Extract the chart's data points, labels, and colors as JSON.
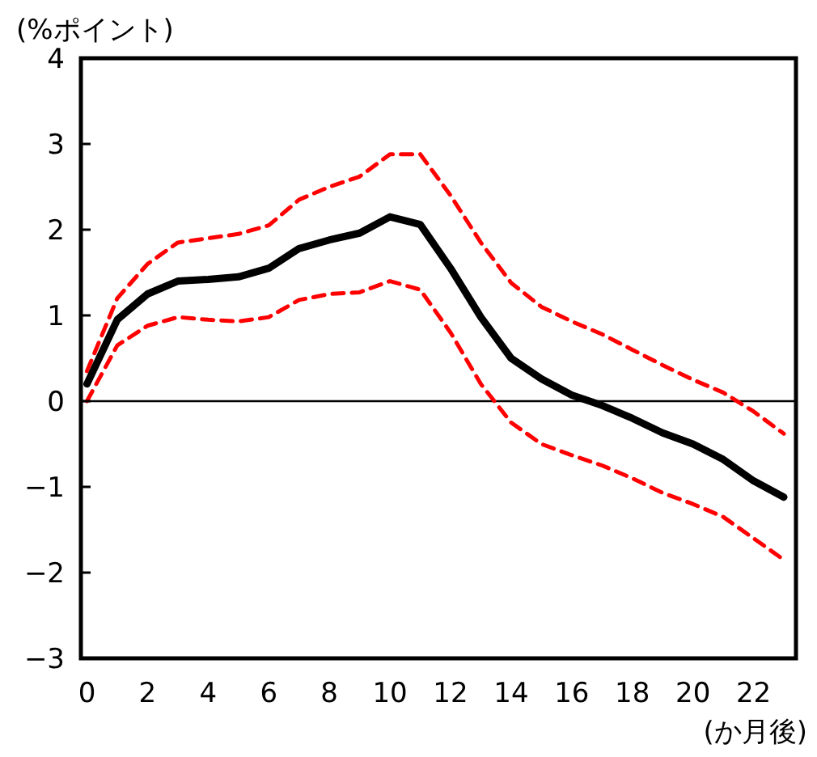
{
  "chart_data": {
    "type": "line",
    "ylabel": "(%ポイント)",
    "xlabel": "(か月後)",
    "x": [
      0,
      1,
      2,
      3,
      4,
      5,
      6,
      7,
      8,
      9,
      10,
      11,
      12,
      13,
      14,
      15,
      16,
      17,
      18,
      19,
      20,
      21,
      22,
      23
    ],
    "xlim": [
      -0.2,
      23.4
    ],
    "xticks": [
      0,
      2,
      4,
      6,
      8,
      10,
      12,
      14,
      16,
      18,
      20,
      22
    ],
    "ylim": [
      -3,
      4
    ],
    "yticks": [
      -3,
      -2,
      -1,
      0,
      1,
      2,
      3,
      4
    ],
    "grid": false,
    "ref_lines": [
      {
        "axis": "y",
        "value": 0,
        "color": "#000000"
      }
    ],
    "series": [
      {
        "color": "#ff0000",
        "line_style": "dashed",
        "values": [
          0.35,
          1.2,
          1.6,
          1.85,
          1.9,
          1.95,
          2.05,
          2.35,
          2.5,
          2.62,
          2.88,
          2.88,
          2.4,
          1.85,
          1.38,
          1.1,
          0.93,
          0.78,
          0.6,
          0.42,
          0.25,
          0.1,
          -0.12,
          -0.38
        ]
      },
      {
        "color": "#ff0000",
        "line_style": "dashed",
        "values": [
          0,
          0.65,
          0.88,
          0.98,
          0.95,
          0.93,
          0.98,
          1.18,
          1.25,
          1.27,
          1.4,
          1.3,
          0.8,
          0.2,
          -0.25,
          -0.5,
          -0.63,
          -0.75,
          -0.9,
          -1.07,
          -1.2,
          -1.35,
          -1.6,
          -1.85
        ]
      },
      {
        "color": "#000000",
        "line_style": "solid",
        "values": [
          0.2,
          0.95,
          1.25,
          1.4,
          1.42,
          1.45,
          1.55,
          1.78,
          1.88,
          1.96,
          2.15,
          2.06,
          1.55,
          0.98,
          0.5,
          0.26,
          0.07,
          -0.05,
          -0.2,
          -0.37,
          -0.5,
          -0.68,
          -0.93,
          -1.12
        ]
      }
    ]
  }
}
